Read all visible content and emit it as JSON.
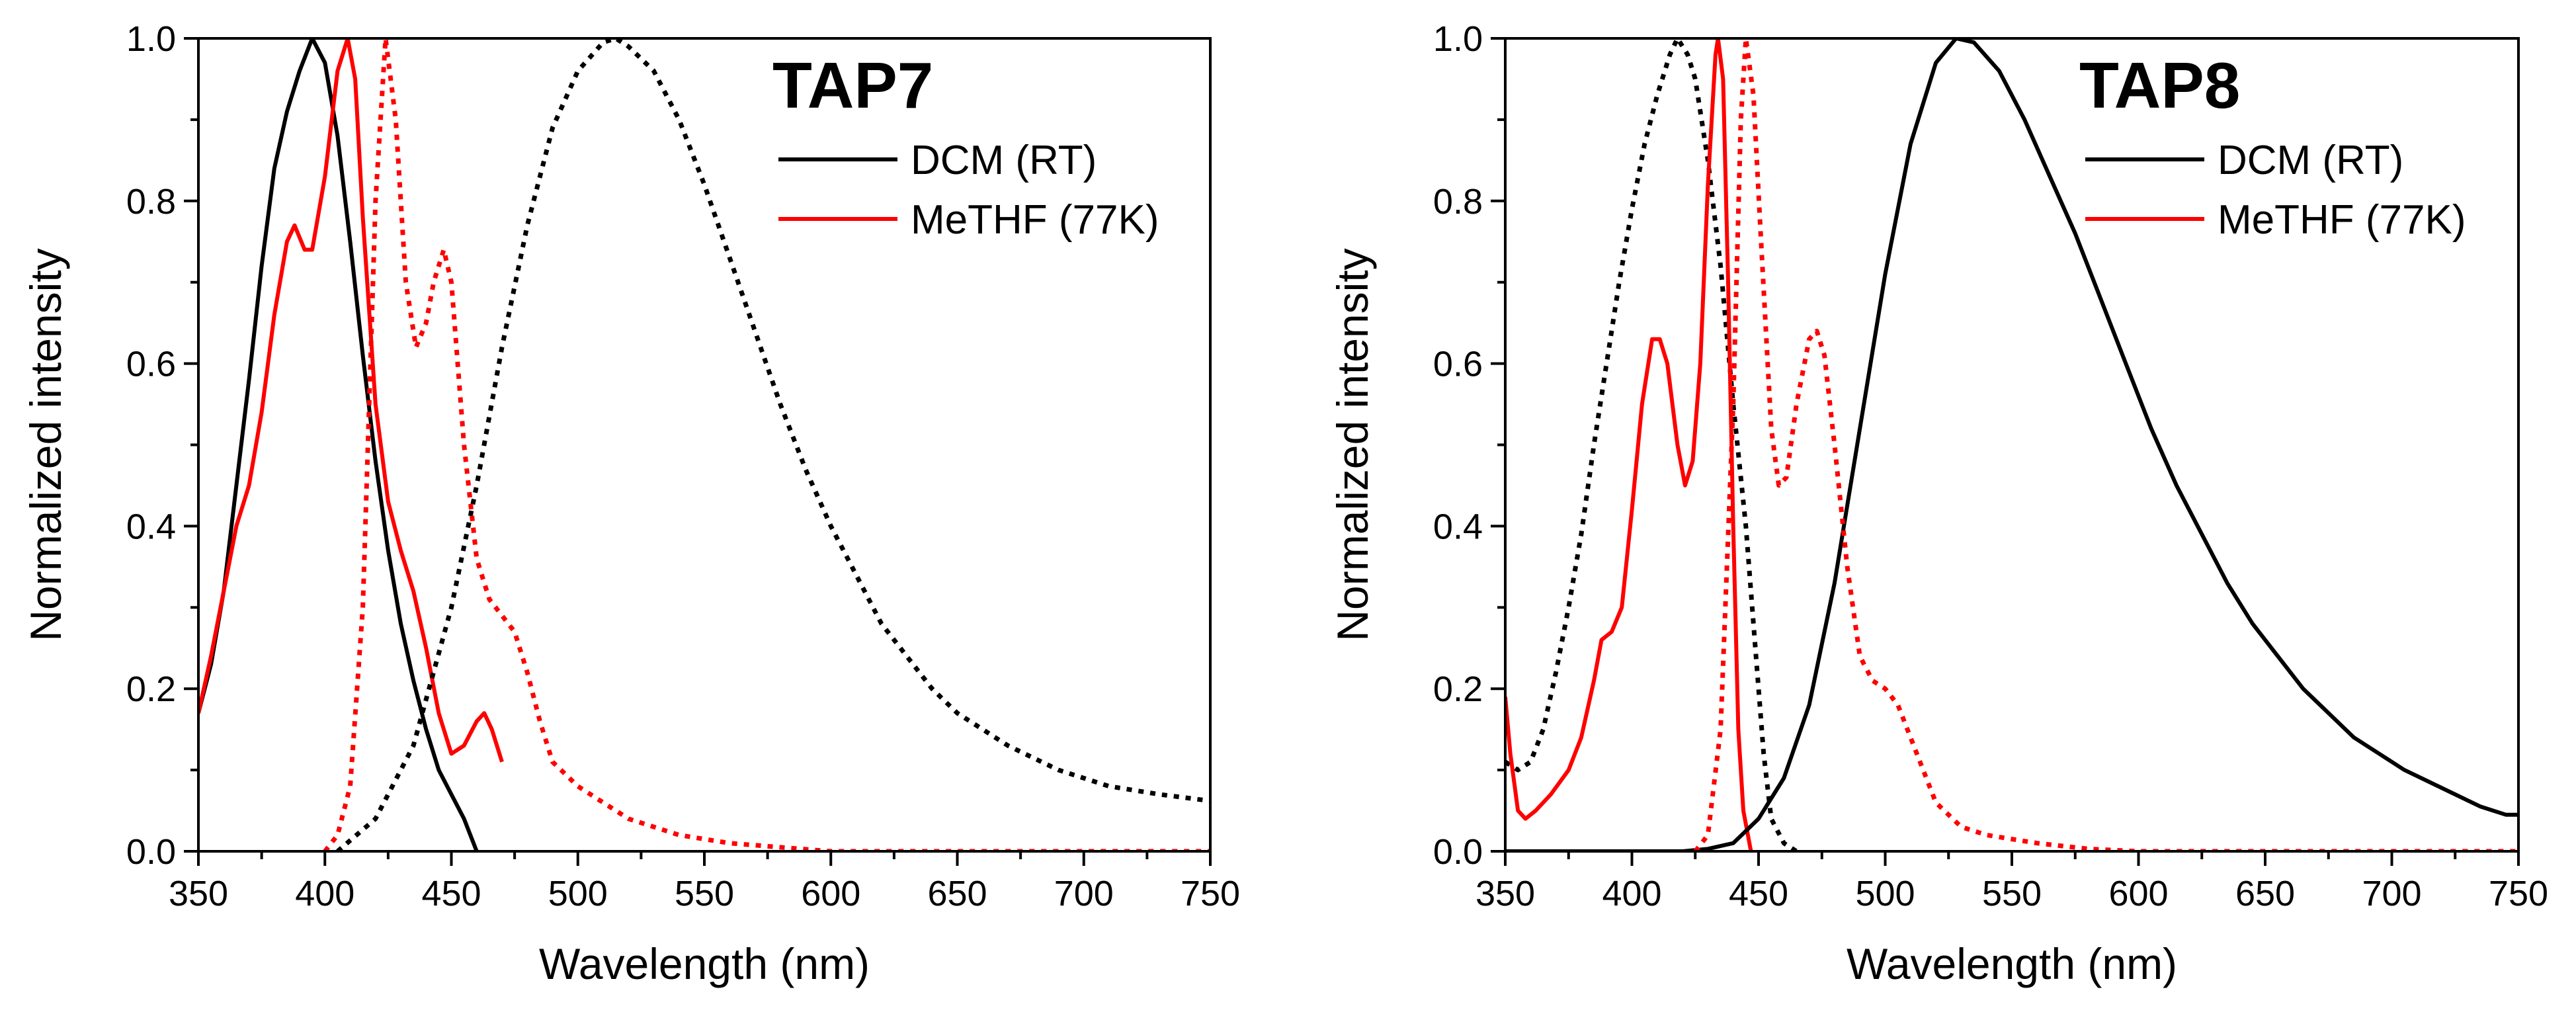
{
  "chart_data": [
    {
      "type": "line",
      "title": "TAP7",
      "xlabel": "Wavelength (nm)",
      "ylabel": "Normalized intensity",
      "xlim": [
        350,
        750
      ],
      "ylim": [
        0,
        1.0
      ],
      "xticks": [
        "350",
        "400",
        "450",
        "500",
        "550",
        "600",
        "650",
        "700",
        "750"
      ],
      "yticks": [
        "0.0",
        "0.2",
        "0.4",
        "0.6",
        "0.8",
        "1.0"
      ],
      "legend": {
        "position": "top-right",
        "entries": [
          {
            "label": "DCM (RT)",
            "color": "#000000"
          },
          {
            "label": "MeTHF (77K)",
            "color": "#ff0000"
          }
        ]
      },
      "series": [
        {
          "name": "DCM (RT) absorption",
          "color": "#000000",
          "style": "solid",
          "points": [
            [
              350,
              0.17
            ],
            [
              355,
              0.23
            ],
            [
              360,
              0.32
            ],
            [
              365,
              0.45
            ],
            [
              370,
              0.58
            ],
            [
              375,
              0.72
            ],
            [
              380,
              0.84
            ],
            [
              385,
              0.91
            ],
            [
              390,
              0.96
            ],
            [
              395,
              1.0
            ],
            [
              400,
              0.97
            ],
            [
              405,
              0.88
            ],
            [
              410,
              0.75
            ],
            [
              415,
              0.61
            ],
            [
              420,
              0.48
            ],
            [
              425,
              0.37
            ],
            [
              430,
              0.28
            ],
            [
              435,
              0.21
            ],
            [
              440,
              0.15
            ],
            [
              445,
              0.1
            ],
            [
              450,
              0.07
            ],
            [
              455,
              0.04
            ],
            [
              460,
              0.0
            ]
          ]
        },
        {
          "name": "MeTHF (77K) absorption",
          "color": "#ff0000",
          "style": "solid",
          "points": [
            [
              350,
              0.17
            ],
            [
              355,
              0.24
            ],
            [
              360,
              0.32
            ],
            [
              365,
              0.4
            ],
            [
              370,
              0.45
            ],
            [
              375,
              0.54
            ],
            [
              380,
              0.66
            ],
            [
              385,
              0.75
            ],
            [
              388,
              0.77
            ],
            [
              392,
              0.74
            ],
            [
              395,
              0.74
            ],
            [
              400,
              0.83
            ],
            [
              405,
              0.96
            ],
            [
              409,
              1.0
            ],
            [
              412,
              0.95
            ],
            [
              415,
              0.78
            ],
            [
              420,
              0.55
            ],
            [
              425,
              0.43
            ],
            [
              430,
              0.37
            ],
            [
              435,
              0.32
            ],
            [
              440,
              0.25
            ],
            [
              445,
              0.17
            ],
            [
              450,
              0.12
            ],
            [
              455,
              0.13
            ],
            [
              460,
              0.16
            ],
            [
              463,
              0.17
            ],
            [
              466,
              0.15
            ],
            [
              470,
              0.11
            ]
          ]
        },
        {
          "name": "DCM (RT) emission",
          "color": "#000000",
          "style": "dotted",
          "points": [
            [
              405,
              0.0
            ],
            [
              420,
              0.04
            ],
            [
              435,
              0.13
            ],
            [
              450,
              0.3
            ],
            [
              460,
              0.45
            ],
            [
              470,
              0.62
            ],
            [
              480,
              0.77
            ],
            [
              490,
              0.89
            ],
            [
              500,
              0.96
            ],
            [
              510,
              0.995
            ],
            [
              515,
              1.0
            ],
            [
              520,
              0.99
            ],
            [
              530,
              0.96
            ],
            [
              540,
              0.9
            ],
            [
              550,
              0.82
            ],
            [
              560,
              0.73
            ],
            [
              570,
              0.64
            ],
            [
              580,
              0.55
            ],
            [
              590,
              0.47
            ],
            [
              600,
              0.4
            ],
            [
              610,
              0.34
            ],
            [
              620,
              0.28
            ],
            [
              630,
              0.24
            ],
            [
              640,
              0.2
            ],
            [
              650,
              0.17
            ],
            [
              660,
              0.15
            ],
            [
              670,
              0.13
            ],
            [
              680,
              0.115
            ],
            [
              690,
              0.1
            ],
            [
              700,
              0.09
            ],
            [
              710,
              0.08
            ],
            [
              720,
              0.075
            ],
            [
              730,
              0.07
            ],
            [
              740,
              0.066
            ],
            [
              750,
              0.062
            ]
          ]
        },
        {
          "name": "MeTHF (77K) emission",
          "color": "#ff0000",
          "style": "dotted",
          "points": [
            [
              400,
              0.0
            ],
            [
              405,
              0.02
            ],
            [
              410,
              0.08
            ],
            [
              415,
              0.3
            ],
            [
              420,
              0.8
            ],
            [
              424,
              1.0
            ],
            [
              428,
              0.9
            ],
            [
              432,
              0.7
            ],
            [
              436,
              0.62
            ],
            [
              440,
              0.65
            ],
            [
              443,
              0.7
            ],
            [
              447,
              0.74
            ],
            [
              450,
              0.7
            ],
            [
              455,
              0.5
            ],
            [
              460,
              0.36
            ],
            [
              465,
              0.31
            ],
            [
              470,
              0.29
            ],
            [
              475,
              0.27
            ],
            [
              480,
              0.22
            ],
            [
              485,
              0.16
            ],
            [
              490,
              0.11
            ],
            [
              500,
              0.08
            ],
            [
              510,
              0.06
            ],
            [
              520,
              0.04
            ],
            [
              540,
              0.02
            ],
            [
              560,
              0.01
            ],
            [
              580,
              0.005
            ],
            [
              600,
              0.0
            ],
            [
              650,
              0.0
            ],
            [
              700,
              0.0
            ],
            [
              750,
              0.0
            ]
          ]
        }
      ]
    },
    {
      "type": "line",
      "title": "TAP8",
      "xlabel": "Wavelength (nm)",
      "ylabel": "Normalized intensity",
      "xlim": [
        350,
        750
      ],
      "ylim": [
        0,
        1.0
      ],
      "xticks": [
        "350",
        "400",
        "450",
        "500",
        "550",
        "600",
        "650",
        "700",
        "750"
      ],
      "yticks": [
        "0.0",
        "0.2",
        "0.4",
        "0.6",
        "0.8",
        "1.0"
      ],
      "legend": {
        "position": "top-right",
        "entries": [
          {
            "label": "DCM (RT)",
            "color": "#000000"
          },
          {
            "label": "MeTHF (77K)",
            "color": "#ff0000"
          }
        ]
      },
      "series": [
        {
          "name": "DCM (RT) absorption",
          "color": "#000000",
          "style": "dotted",
          "points": [
            [
              350,
              0.11
            ],
            [
              355,
              0.1
            ],
            [
              360,
              0.11
            ],
            [
              365,
              0.15
            ],
            [
              370,
              0.22
            ],
            [
              375,
              0.3
            ],
            [
              380,
              0.39
            ],
            [
              385,
              0.5
            ],
            [
              390,
              0.6
            ],
            [
              395,
              0.7
            ],
            [
              400,
              0.79
            ],
            [
              405,
              0.87
            ],
            [
              410,
              0.93
            ],
            [
              415,
              0.98
            ],
            [
              418,
              1.0
            ],
            [
              422,
              0.98
            ],
            [
              425,
              0.95
            ],
            [
              430,
              0.85
            ],
            [
              435,
              0.72
            ],
            [
              440,
              0.55
            ],
            [
              445,
              0.4
            ],
            [
              448,
              0.28
            ],
            [
              452,
              0.12
            ],
            [
              455,
              0.04
            ],
            [
              460,
              0.01
            ],
            [
              465,
              0.0
            ]
          ]
        },
        {
          "name": "MeTHF (77K) absorption",
          "color": "#ff0000",
          "style": "solid",
          "points": [
            [
              350,
              0.19
            ],
            [
              352,
              0.12
            ],
            [
              355,
              0.05
            ],
            [
              358,
              0.04
            ],
            [
              362,
              0.05
            ],
            [
              368,
              0.07
            ],
            [
              375,
              0.1
            ],
            [
              380,
              0.14
            ],
            [
              385,
              0.21
            ],
            [
              388,
              0.26
            ],
            [
              392,
              0.27
            ],
            [
              396,
              0.3
            ],
            [
              400,
              0.42
            ],
            [
              404,
              0.55
            ],
            [
              408,
              0.63
            ],
            [
              411,
              0.63
            ],
            [
              414,
              0.6
            ],
            [
              418,
              0.5
            ],
            [
              421,
              0.45
            ],
            [
              424,
              0.48
            ],
            [
              427,
              0.6
            ],
            [
              430,
              0.82
            ],
            [
              433,
              0.98
            ],
            [
              434,
              1.0
            ],
            [
              436,
              0.95
            ],
            [
              438,
              0.7
            ],
            [
              440,
              0.4
            ],
            [
              442,
              0.15
            ],
            [
              444,
              0.05
            ],
            [
              447,
              0.0
            ]
          ]
        },
        {
          "name": "DCM (RT) emission",
          "color": "#000000",
          "style": "solid",
          "points": [
            [
              350,
              0.0
            ],
            [
              400,
              0.0
            ],
            [
              420,
              0.0
            ],
            [
              430,
              0.003
            ],
            [
              440,
              0.01
            ],
            [
              450,
              0.04
            ],
            [
              460,
              0.09
            ],
            [
              470,
              0.18
            ],
            [
              480,
              0.33
            ],
            [
              490,
              0.52
            ],
            [
              500,
              0.71
            ],
            [
              510,
              0.87
            ],
            [
              520,
              0.97
            ],
            [
              528,
              1.0
            ],
            [
              535,
              0.995
            ],
            [
              545,
              0.96
            ],
            [
              555,
              0.9
            ],
            [
              565,
              0.83
            ],
            [
              575,
              0.76
            ],
            [
              585,
              0.68
            ],
            [
              595,
              0.6
            ],
            [
              605,
              0.52
            ],
            [
              615,
              0.45
            ],
            [
              625,
              0.39
            ],
            [
              635,
              0.33
            ],
            [
              645,
              0.28
            ],
            [
              655,
              0.24
            ],
            [
              665,
              0.2
            ],
            [
              675,
              0.17
            ],
            [
              685,
              0.14
            ],
            [
              695,
              0.12
            ],
            [
              705,
              0.1
            ],
            [
              715,
              0.085
            ],
            [
              725,
              0.07
            ],
            [
              735,
              0.055
            ],
            [
              745,
              0.045
            ],
            [
              750,
              0.045
            ]
          ]
        },
        {
          "name": "MeTHF (77K) emission",
          "color": "#ff0000",
          "style": "dotted",
          "points": [
            [
              425,
              0.0
            ],
            [
              430,
              0.02
            ],
            [
              435,
              0.15
            ],
            [
              440,
              0.55
            ],
            [
              443,
              0.9
            ],
            [
              445,
              1.0
            ],
            [
              448,
              0.93
            ],
            [
              451,
              0.75
            ],
            [
              455,
              0.52
            ],
            [
              458,
              0.45
            ],
            [
              461,
              0.46
            ],
            [
              465,
              0.55
            ],
            [
              470,
              0.63
            ],
            [
              473,
              0.64
            ],
            [
              476,
              0.61
            ],
            [
              480,
              0.5
            ],
            [
              485,
              0.35
            ],
            [
              490,
              0.24
            ],
            [
              495,
              0.21
            ],
            [
              500,
              0.2
            ],
            [
              505,
              0.18
            ],
            [
              510,
              0.14
            ],
            [
              515,
              0.1
            ],
            [
              520,
              0.06
            ],
            [
              530,
              0.03
            ],
            [
              540,
              0.02
            ],
            [
              560,
              0.01
            ],
            [
              580,
              0.003
            ],
            [
              600,
              0.0
            ],
            [
              650,
              0.0
            ],
            [
              700,
              0.0
            ],
            [
              750,
              0.0
            ]
          ]
        }
      ]
    }
  ]
}
